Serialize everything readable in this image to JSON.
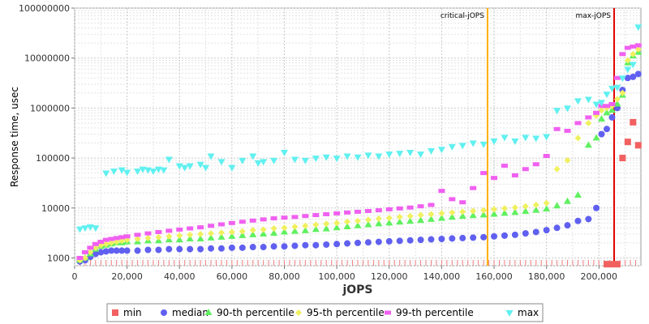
{
  "chart_data": {
    "type": "scatter",
    "xlabel": "jOPS",
    "ylabel": "Response time, usec",
    "y_scale": "log",
    "xlim": [
      0,
      216000
    ],
    "ylim": [
      700,
      100000000
    ],
    "x_ticks": [
      0,
      20000,
      40000,
      60000,
      80000,
      100000,
      120000,
      140000,
      160000,
      180000,
      200000
    ],
    "x_tick_labels": [
      "0",
      "20,000",
      "40,000",
      "60,000",
      "80,000",
      "100,000",
      "120,000",
      "140,000",
      "160,000",
      "180,000",
      "200,000"
    ],
    "y_ticks": [
      1000,
      10000,
      100000,
      1000000,
      10000000,
      100000000
    ],
    "y_tick_labels": [
      "1000",
      "10000",
      "100000",
      "1000000",
      "10000000",
      "100000000"
    ],
    "grid": true,
    "legend_position": "bottom",
    "markers": [
      {
        "label": "critical-jOPS",
        "x": 157500,
        "color": "#ffb000"
      },
      {
        "label": "max-jOPS",
        "x": 205800,
        "color": "#e00000"
      }
    ],
    "series": [
      {
        "name": "min",
        "color": "#f26060",
        "shape": "square",
        "x": [
          203000,
          205000,
          207000,
          209000,
          211000,
          213000,
          215000
        ],
        "y": [
          750,
          750,
          750,
          100000,
          210000,
          520000,
          180000
        ]
      },
      {
        "name": "median",
        "color": "#6060f0",
        "shape": "circle",
        "x": [
          2000,
          4000,
          6000,
          8000,
          10000,
          12000,
          14000,
          16000,
          18000,
          20000,
          24000,
          28000,
          32000,
          36000,
          40000,
          44000,
          48000,
          52000,
          56000,
          60000,
          64000,
          68000,
          72000,
          76000,
          80000,
          84000,
          88000,
          92000,
          96000,
          100000,
          104000,
          108000,
          112000,
          116000,
          120000,
          124000,
          128000,
          132000,
          136000,
          140000,
          144000,
          148000,
          152000,
          156000,
          160000,
          164000,
          168000,
          172000,
          176000,
          180000,
          184000,
          188000,
          192000,
          196000,
          199000,
          201000,
          203000,
          205000,
          207000,
          209000,
          211000,
          213000,
          215000
        ],
        "y": [
          850,
          900,
          1050,
          1200,
          1300,
          1350,
          1400,
          1400,
          1400,
          1400,
          1400,
          1450,
          1450,
          1500,
          1500,
          1500,
          1500,
          1550,
          1550,
          1600,
          1600,
          1650,
          1650,
          1700,
          1700,
          1750,
          1800,
          1800,
          1850,
          1900,
          1950,
          2000,
          2050,
          2100,
          2150,
          2200,
          2250,
          2300,
          2350,
          2400,
          2450,
          2500,
          2550,
          2600,
          2700,
          2800,
          2900,
          3100,
          3300,
          3600,
          4000,
          4500,
          5500,
          6000,
          10000,
          300000,
          380000,
          650000,
          1000000,
          2300000,
          4000000,
          4200000,
          4800000
        ]
      },
      {
        "name": "90-th percentile",
        "color": "#60f060",
        "shape": "triangle-up",
        "x": [
          2000,
          4000,
          6000,
          8000,
          10000,
          12000,
          14000,
          16000,
          18000,
          20000,
          24000,
          28000,
          32000,
          36000,
          40000,
          44000,
          48000,
          52000,
          56000,
          60000,
          64000,
          68000,
          72000,
          76000,
          80000,
          84000,
          88000,
          92000,
          96000,
          100000,
          104000,
          108000,
          112000,
          116000,
          120000,
          124000,
          128000,
          132000,
          136000,
          140000,
          144000,
          148000,
          152000,
          156000,
          160000,
          164000,
          168000,
          172000,
          176000,
          180000,
          184000,
          188000,
          192000,
          196000,
          199000,
          201000,
          203000,
          205000,
          207000,
          209000,
          211000,
          213000,
          215000
        ],
        "y": [
          900,
          1000,
          1200,
          1500,
          1700,
          1800,
          1900,
          2000,
          2000,
          2100,
          2100,
          2200,
          2200,
          2300,
          2300,
          2400,
          2400,
          2500,
          2600,
          2700,
          2800,
          2900,
          3000,
          3100,
          3300,
          3400,
          3500,
          3700,
          3800,
          4000,
          4200,
          4400,
          4600,
          4800,
          5000,
          5200,
          5400,
          5600,
          5900,
          6200,
          6500,
          6800,
          7000,
          7200,
          7500,
          7800,
          8100,
          8500,
          9000,
          9500,
          11000,
          13500,
          18000,
          180000,
          250000,
          600000,
          800000,
          900000,
          1200000,
          1800000,
          8000000,
          11000000,
          13000000
        ]
      },
      {
        "name": "95-th percentile",
        "color": "#f0f060",
        "shape": "diamond",
        "x": [
          2000,
          4000,
          6000,
          8000,
          10000,
          12000,
          14000,
          16000,
          18000,
          20000,
          24000,
          28000,
          32000,
          36000,
          40000,
          44000,
          48000,
          52000,
          56000,
          60000,
          64000,
          68000,
          72000,
          76000,
          80000,
          84000,
          88000,
          92000,
          96000,
          100000,
          104000,
          108000,
          112000,
          116000,
          120000,
          124000,
          128000,
          132000,
          136000,
          140000,
          144000,
          148000,
          152000,
          156000,
          160000,
          164000,
          168000,
          172000,
          176000,
          180000,
          184000,
          188000,
          192000,
          196000,
          199000,
          201000,
          203000,
          205000,
          207000,
          209000,
          211000,
          213000,
          215000
        ],
        "y": [
          900,
          1000,
          1300,
          1600,
          1800,
          1900,
          2000,
          2100,
          2200,
          2300,
          2400,
          2500,
          2600,
          2700,
          2800,
          2900,
          3000,
          3100,
          3200,
          3300,
          3400,
          3600,
          3700,
          3900,
          4000,
          4200,
          4400,
          4600,
          4800,
          5000,
          5300,
          5500,
          5800,
          6100,
          6300,
          6600,
          6900,
          7200,
          7500,
          7800,
          8100,
          8400,
          8700,
          9000,
          9400,
          9800,
          10200,
          10800,
          11500,
          12500,
          60000,
          90000,
          250000,
          500000,
          700000,
          900000,
          1000000,
          1100000,
          1500000,
          2000000,
          9000000,
          12000000,
          15000000
        ]
      },
      {
        "name": "99-th percentile",
        "color": "#f060f0",
        "shape": "hbar",
        "x": [
          2000,
          4000,
          6000,
          8000,
          10000,
          12000,
          14000,
          16000,
          18000,
          20000,
          24000,
          28000,
          32000,
          36000,
          40000,
          44000,
          48000,
          52000,
          56000,
          60000,
          64000,
          68000,
          72000,
          76000,
          80000,
          84000,
          88000,
          92000,
          96000,
          100000,
          104000,
          108000,
          112000,
          116000,
          120000,
          124000,
          128000,
          132000,
          136000,
          140000,
          144000,
          148000,
          152000,
          156000,
          160000,
          164000,
          168000,
          172000,
          176000,
          180000,
          184000,
          188000,
          192000,
          196000,
          199000,
          201000,
          203000,
          205000,
          207000,
          209000,
          211000,
          213000,
          215000
        ],
        "y": [
          1000,
          1300,
          1600,
          1900,
          2100,
          2300,
          2400,
          2500,
          2600,
          2700,
          2900,
          3100,
          3300,
          3500,
          3700,
          3900,
          4100,
          4400,
          4700,
          5000,
          5300,
          5600,
          5900,
          6200,
          6400,
          6600,
          6900,
          7200,
          7500,
          7800,
          8100,
          8400,
          8700,
          9000,
          9400,
          9800,
          10200,
          10800,
          11500,
          22000,
          15000,
          13000,
          25000,
          50000,
          40000,
          70000,
          45000,
          60000,
          75000,
          110000,
          380000,
          350000,
          500000,
          650000,
          800000,
          1100000,
          1100000,
          1200000,
          4000000,
          12000000,
          16000000,
          17000000,
          18000000
        ]
      },
      {
        "name": "max",
        "color": "#60f0f0",
        "shape": "triangle-down",
        "x": [
          2000,
          4000,
          6000,
          8000,
          12000,
          15000,
          18000,
          20000,
          24000,
          26000,
          28000,
          30000,
          32000,
          34000,
          36000,
          40000,
          42000,
          44000,
          48000,
          50000,
          52000,
          56000,
          60000,
          64000,
          68000,
          70000,
          72000,
          76000,
          80000,
          84000,
          88000,
          92000,
          96000,
          100000,
          104000,
          108000,
          112000,
          116000,
          120000,
          124000,
          128000,
          132000,
          136000,
          140000,
          144000,
          148000,
          152000,
          156000,
          160000,
          164000,
          168000,
          172000,
          176000,
          180000,
          184000,
          188000,
          192000,
          196000,
          199000,
          201000,
          203000,
          205000,
          207000,
          209000,
          211000,
          213000,
          215000
        ],
        "y": [
          3800,
          4000,
          4200,
          4000,
          50000,
          55000,
          58000,
          52000,
          55000,
          60000,
          58000,
          55000,
          60000,
          58000,
          95000,
          70000,
          65000,
          70000,
          75000,
          65000,
          110000,
          85000,
          65000,
          90000,
          110000,
          80000,
          85000,
          90000,
          130000,
          95000,
          90000,
          100000,
          105000,
          100000,
          110000,
          105000,
          115000,
          110000,
          120000,
          125000,
          130000,
          120000,
          140000,
          150000,
          170000,
          180000,
          200000,
          190000,
          220000,
          260000,
          220000,
          260000,
          250000,
          270000,
          900000,
          1000000,
          1400000,
          1500000,
          1200000,
          1300000,
          1900000,
          2500000,
          2600000,
          4000000,
          6000000,
          7500000,
          42000000
        ]
      }
    ]
  }
}
